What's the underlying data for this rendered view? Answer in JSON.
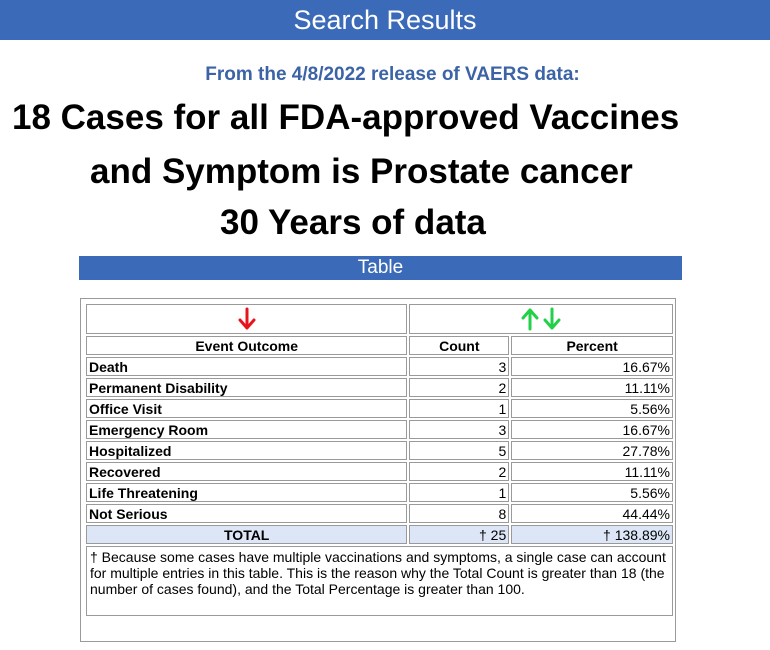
{
  "header": {
    "title": "Search Results"
  },
  "release": "From the 4/8/2022 release of VAERS data:",
  "headline": {
    "line1": "18 Cases for all FDA-approved Vaccines",
    "line2": "and Symptom is Prostate cancer",
    "line3": "30 Years of data"
  },
  "table_bar": "Table",
  "table": {
    "columns": [
      "Event Outcome",
      "Count",
      "Percent"
    ],
    "rows": [
      {
        "label": "Death",
        "count": "3",
        "percent": "16.67%"
      },
      {
        "label": "Permanent Disability",
        "count": "2",
        "percent": "11.11%"
      },
      {
        "label": "Office Visit",
        "count": "1",
        "percent": "5.56%"
      },
      {
        "label": "Emergency Room",
        "count": "3",
        "percent": "16.67%"
      },
      {
        "label": "Hospitalized",
        "count": "5",
        "percent": "27.78%"
      },
      {
        "label": "Recovered",
        "count": "2",
        "percent": "11.11%"
      },
      {
        "label": "Life Threatening",
        "count": "1",
        "percent": "5.56%"
      },
      {
        "label": "Not Serious",
        "count": "8",
        "percent": "44.44%"
      }
    ],
    "total": {
      "label": "TOTAL",
      "count": "† 25",
      "percent": "† 138.89%"
    },
    "footnote": "† Because some cases have multiple vaccinations and symptoms, a single case can account for multiple entries in this table. This is the reason why the Total Count is greater than 18 (the number of cases found), and the Total Percentage is greater than 100."
  },
  "icons": {
    "sort_down_icon_color": "#e8141c",
    "sort_updown_icon_color": "#22d04a"
  }
}
